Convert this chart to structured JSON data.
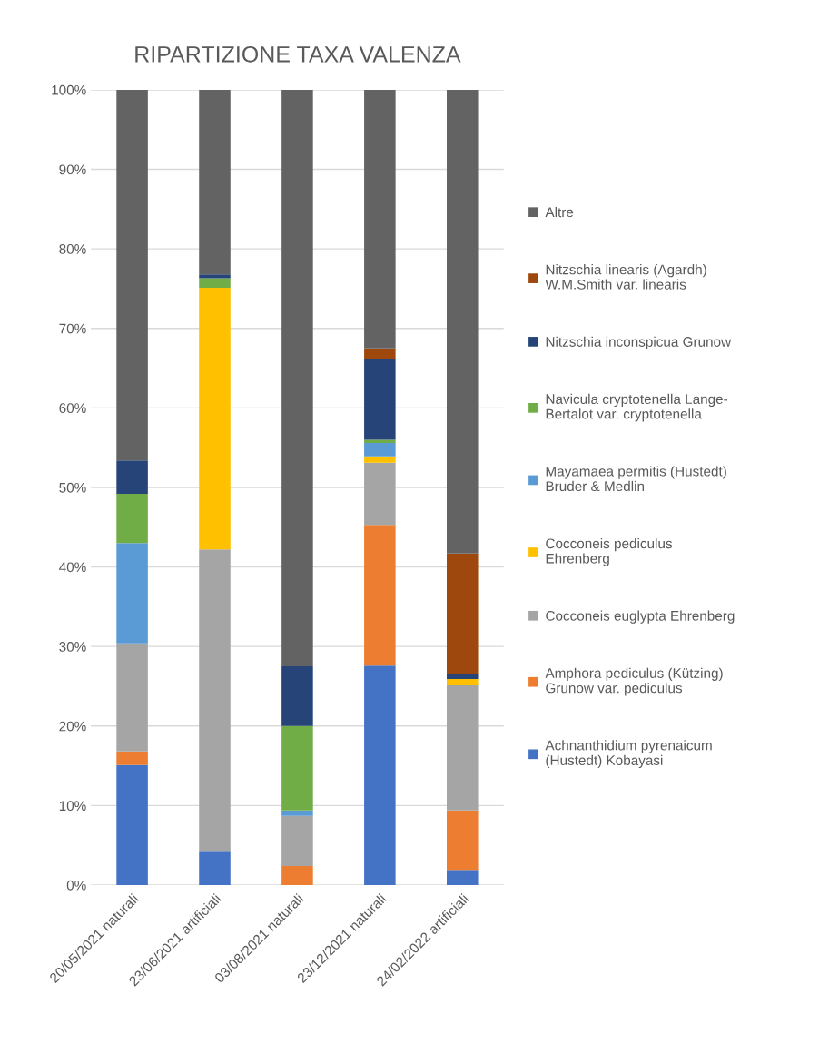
{
  "chart_data": {
    "type": "bar",
    "stacked": true,
    "title": "RIPARTIZIONE TAXA VALENZA",
    "categories": [
      "20/05/2021 naturali",
      "23/06/2021 artificiali",
      "03/08/2021 naturali",
      "23/12/2021 naturali",
      "24/02/2022 artificiali"
    ],
    "series": [
      {
        "name": "Achnanthidium pyrenaicum\n(Hustedt) Kobayasi",
        "color": "#4472c4",
        "values": [
          15.1,
          4.2,
          0,
          27.6,
          1.9
        ]
      },
      {
        "name": "Amphora pediculus (Kützing)\nGrunow var. pediculus",
        "color": "#ed7d31",
        "values": [
          1.7,
          0,
          2.4,
          17.7,
          7.5
        ]
      },
      {
        "name": "Cocconeis euglypta Ehrenberg",
        "color": "#a5a5a5",
        "values": [
          13.6,
          38.0,
          6.3,
          7.8,
          15.7
        ]
      },
      {
        "name": "Cocconeis pediculus\nEhrenberg",
        "color": "#ffc000",
        "values": [
          0,
          32.9,
          0,
          0.8,
          0.8
        ]
      },
      {
        "name": "Mayamaea permitis (Hustedt)\nBruder & Medlin",
        "color": "#5b9bd5",
        "values": [
          12.6,
          0,
          0.7,
          1.7,
          0
        ]
      },
      {
        "name": "Navicula cryptotenella Lange-\nBertalot var. cryptotenella",
        "color": "#70ad47",
        "values": [
          6.2,
          1.2,
          10.6,
          0.4,
          0
        ]
      },
      {
        "name": "Nitzschia inconspicua Grunow",
        "color": "#264478",
        "values": [
          4.2,
          0.5,
          7.5,
          10.2,
          0.7
        ]
      },
      {
        "name": "Nitzschia linearis (Agardh)\nW.M.Smith var. linearis",
        "color": "#9e480e",
        "values": [
          0,
          0,
          0,
          1.3,
          15.1
        ]
      },
      {
        "name": "Altre",
        "color": "#636363",
        "values": [
          46.6,
          23.2,
          72.5,
          32.5,
          58.3
        ]
      }
    ],
    "ylim": [
      0,
      100
    ],
    "yticks": [
      {
        "value": 0,
        "label": "0%"
      },
      {
        "value": 10,
        "label": "10%"
      },
      {
        "value": 20,
        "label": "20%"
      },
      {
        "value": 30,
        "label": "30%"
      },
      {
        "value": 40,
        "label": "40%"
      },
      {
        "value": 50,
        "label": "50%"
      },
      {
        "value": 60,
        "label": "60%"
      },
      {
        "value": 70,
        "label": "70%"
      },
      {
        "value": 80,
        "label": "80%"
      },
      {
        "value": 90,
        "label": "90%"
      },
      {
        "value": 100,
        "label": "100%"
      }
    ],
    "grid": "y",
    "legend": "right"
  }
}
